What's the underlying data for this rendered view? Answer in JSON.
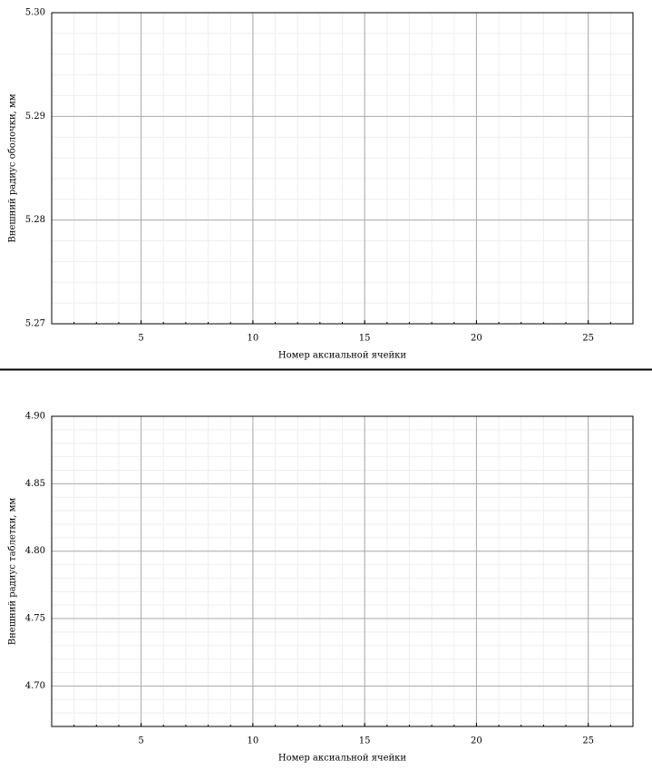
{
  "chart_data": [
    {
      "type": "line",
      "xlabel": "Номер аксиальной ячейки",
      "ylabel": "Внешний радиус оболочки, мм",
      "xlim": [
        1,
        27
      ],
      "xticks": [
        5,
        10,
        15,
        20,
        25
      ],
      "ylim": [
        5.27,
        5.3
      ],
      "yticks": [
        5.27,
        5.28,
        5.29,
        {
          "value": 5.3,
          "label": "5.30"
        }
      ],
      "grid": true,
      "minor_grid": true
    },
    {
      "type": "line",
      "xlabel": "Номер аксиальной ячейки",
      "ylabel": "Внешний радиус таблетки, мм",
      "xlim": [
        1,
        27
      ],
      "xticks": [
        5,
        10,
        15,
        20,
        25
      ],
      "ylim": [
        4.67,
        4.9
      ],
      "yticks": [
        {
          "value": 4.7,
          "label": "4.70"
        },
        4.75,
        {
          "value": 4.8,
          "label": "4.80"
        },
        4.85,
        {
          "value": 4.9,
          "label": "4.90"
        }
      ],
      "grid": true,
      "minor_grid": true
    }
  ]
}
